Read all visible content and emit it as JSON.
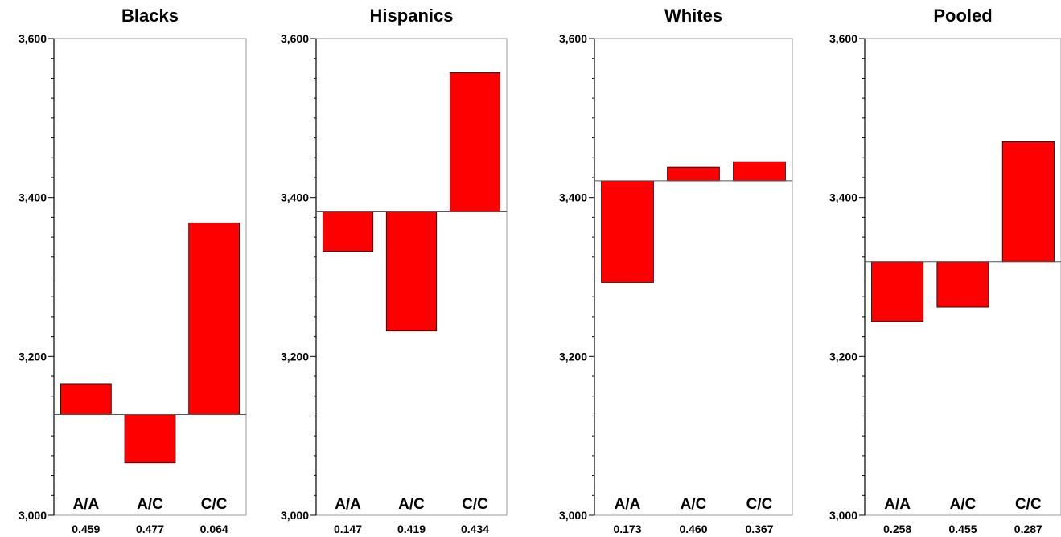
{
  "colors": {
    "bar": "#ff0000",
    "bar_stroke": "#000000",
    "axis": "#000000",
    "frame": "#000000"
  },
  "chart_data": [
    {
      "type": "bar",
      "title": "Blacks",
      "categories": [
        "A/A",
        "A/C",
        "C/C"
      ],
      "frequencies": [
        "0.459",
        "0.477",
        "0.064"
      ],
      "baseline": 3127,
      "values": [
        3165,
        3066,
        3368
      ],
      "ylim": [
        3000,
        3600
      ],
      "yticks": [
        "3,000",
        "3,200",
        "3,400",
        "3,600"
      ]
    },
    {
      "type": "bar",
      "title": "Hispanics",
      "categories": [
        "A/A",
        "A/C",
        "C/C"
      ],
      "frequencies": [
        "0.147",
        "0.419",
        "0.434"
      ],
      "baseline": 3382,
      "values": [
        3332,
        3232,
        3557
      ],
      "ylim": [
        3000,
        3600
      ],
      "yticks": [
        "3,000",
        "3,200",
        "3,400",
        "3,600"
      ]
    },
    {
      "type": "bar",
      "title": "Whites",
      "categories": [
        "A/A",
        "A/C",
        "C/C"
      ],
      "frequencies": [
        "0.173",
        "0.460",
        "0.367"
      ],
      "baseline": 3421,
      "values": [
        3293,
        3438,
        3445
      ],
      "ylim": [
        3000,
        3600
      ],
      "yticks": [
        "3,000",
        "3,200",
        "3,400",
        "3,600"
      ]
    },
    {
      "type": "bar",
      "title": "Pooled",
      "categories": [
        "A/A",
        "A/C",
        "C/C"
      ],
      "frequencies": [
        "0.258",
        "0.455",
        "0.287"
      ],
      "baseline": 3319,
      "values": [
        3244,
        3262,
        3470
      ],
      "ylim": [
        3000,
        3600
      ],
      "yticks": [
        "3,000",
        "3,200",
        "3,400",
        "3,600"
      ]
    }
  ]
}
